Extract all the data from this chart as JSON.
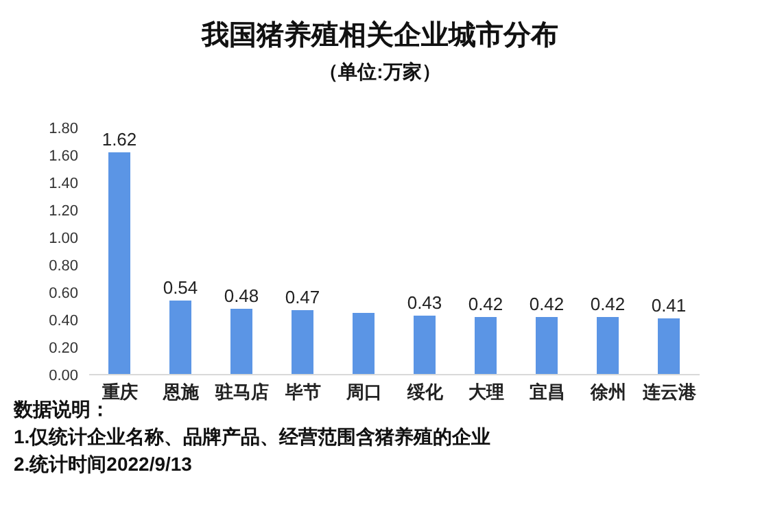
{
  "chart_data": {
    "type": "bar",
    "title": "我国猪养殖相关企业城市分布",
    "subtitle": "（单位:万家）",
    "categories": [
      "重庆",
      "恩施",
      "驻马店",
      "毕节",
      "周口",
      "绥化",
      "大理",
      "宜昌",
      "徐州",
      "连云港"
    ],
    "values": [
      1.62,
      0.54,
      0.48,
      0.47,
      0.45,
      0.43,
      0.42,
      0.42,
      0.42,
      0.41
    ],
    "value_labels": [
      "1.62",
      "0.54",
      "0.48",
      "0.47",
      null,
      "0.43",
      "0.42",
      "0.42",
      "0.42",
      "0.41"
    ],
    "color": "#5b95e5",
    "ylim": [
      0,
      1.8
    ],
    "yticks": [
      {
        "value": 0,
        "label": "0.00"
      },
      {
        "value": 0.2,
        "label": "0.20"
      },
      {
        "value": 0.4,
        "label": "0.40"
      },
      {
        "value": 0.6,
        "label": "0.60"
      },
      {
        "value": 0.8,
        "label": "0.80"
      },
      {
        "value": 1,
        "label": "1.00"
      },
      {
        "value": 1.2,
        "label": "1.20"
      },
      {
        "value": 1.4,
        "label": "1.40"
      },
      {
        "value": 1.6,
        "label": "1.60"
      },
      {
        "value": 1.8,
        "label": "1.80"
      }
    ],
    "grid": false,
    "legend": false,
    "annotations": [
      "数据说明：",
      "1.仅统计企业名称、品牌产品、经营范围含猪养殖的企业",
      "2.统计时间2022/9/13"
    ]
  }
}
